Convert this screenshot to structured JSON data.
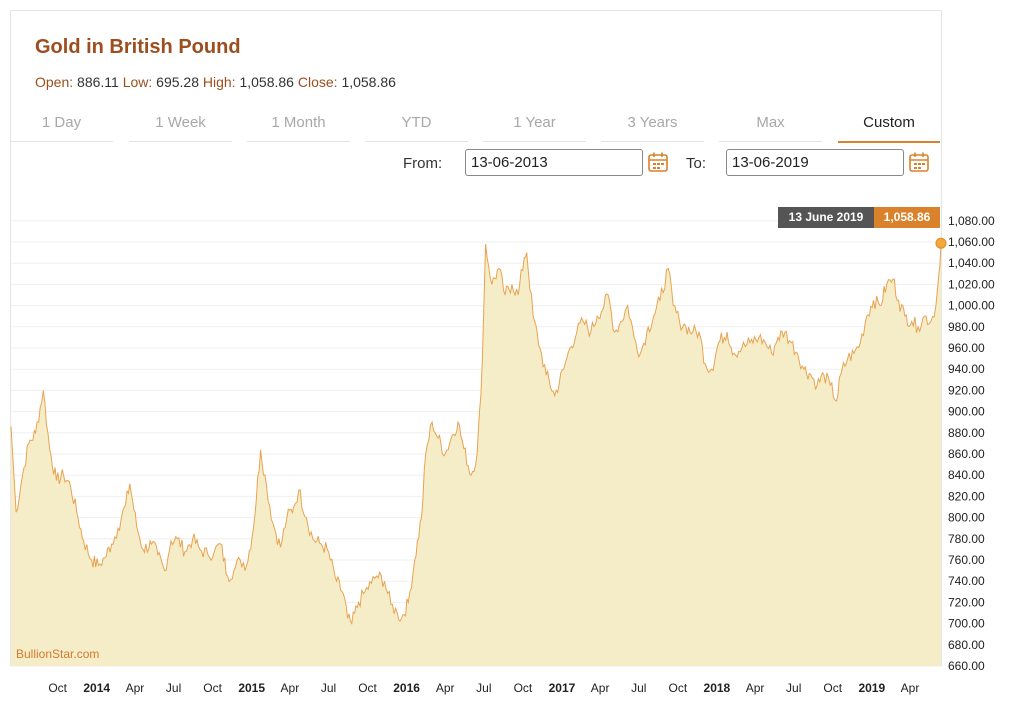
{
  "title": "Gold in British Pound",
  "ohlc": {
    "open_label": "Open:",
    "open": "886.11",
    "low_label": "Low:",
    "low": "695.28",
    "high_label": "High:",
    "high": "1,058.86",
    "close_label": "Close:",
    "close": "1,058.86"
  },
  "tabs": [
    "1 Day",
    "1 Week",
    "1 Month",
    "YTD",
    "1 Year",
    "3 Years",
    "Max",
    "Custom"
  ],
  "active_tab": "Custom",
  "range": {
    "from_label": "From:",
    "from_value": "13-06-2013",
    "to_label": "To:",
    "to_value": "13-06-2019"
  },
  "tooltip": {
    "date": "13 June 2019",
    "value": "1,058.86"
  },
  "brand": "BullionStar.com",
  "colors": {
    "accent": "#d9822b",
    "line": "#e8a351",
    "fill": "#f5edc8",
    "title": "#9c4f1e"
  },
  "chart_data": {
    "type": "area",
    "title": "Gold in British Pound",
    "ylim": [
      660,
      1090
    ],
    "y_ticks": [
      "1,080.00",
      "1,060.00",
      "1,040.00",
      "1,020.00",
      "1,000.00",
      "980.00",
      "960.00",
      "940.00",
      "920.00",
      "900.00",
      "880.00",
      "860.00",
      "840.00",
      "820.00",
      "800.00",
      "780.00",
      "760.00",
      "740.00",
      "720.00",
      "700.00",
      "680.00",
      "660.00"
    ],
    "x_range": [
      "2013-06-13",
      "2019-06-13"
    ],
    "x_ticks": [
      {
        "label": "Oct",
        "date": "2013-10-01",
        "bold": false
      },
      {
        "label": "2014",
        "date": "2014-01-01",
        "bold": true
      },
      {
        "label": "Apr",
        "date": "2014-04-01",
        "bold": false
      },
      {
        "label": "Jul",
        "date": "2014-07-01",
        "bold": false
      },
      {
        "label": "Oct",
        "date": "2014-10-01",
        "bold": false
      },
      {
        "label": "2015",
        "date": "2015-01-01",
        "bold": true
      },
      {
        "label": "Apr",
        "date": "2015-04-01",
        "bold": false
      },
      {
        "label": "Jul",
        "date": "2015-07-01",
        "bold": false
      },
      {
        "label": "Oct",
        "date": "2015-10-01",
        "bold": false
      },
      {
        "label": "2016",
        "date": "2016-01-01",
        "bold": true
      },
      {
        "label": "Apr",
        "date": "2016-04-01",
        "bold": false
      },
      {
        "label": "Jul",
        "date": "2016-07-01",
        "bold": false
      },
      {
        "label": "Oct",
        "date": "2016-10-01",
        "bold": false
      },
      {
        "label": "2017",
        "date": "2017-01-01",
        "bold": true
      },
      {
        "label": "Apr",
        "date": "2017-04-01",
        "bold": false
      },
      {
        "label": "Jul",
        "date": "2017-07-01",
        "bold": false
      },
      {
        "label": "Oct",
        "date": "2017-10-01",
        "bold": false
      },
      {
        "label": "2018",
        "date": "2018-01-01",
        "bold": true
      },
      {
        "label": "Apr",
        "date": "2018-04-01",
        "bold": false
      },
      {
        "label": "Jul",
        "date": "2018-07-01",
        "bold": false
      },
      {
        "label": "Oct",
        "date": "2018-10-01",
        "bold": false
      },
      {
        "label": "2019",
        "date": "2019-01-01",
        "bold": true
      },
      {
        "label": "Apr",
        "date": "2019-04-01",
        "bold": false
      }
    ],
    "series": [
      {
        "points": [
          [
            "2013-06-13",
            886
          ],
          [
            "2013-06-25",
            805
          ],
          [
            "2013-07-10",
            840
          ],
          [
            "2013-07-25",
            870
          ],
          [
            "2013-08-10",
            880
          ],
          [
            "2013-08-28",
            920
          ],
          [
            "2013-09-12",
            865
          ],
          [
            "2013-09-28",
            835
          ],
          [
            "2013-10-15",
            840
          ],
          [
            "2013-10-31",
            830
          ],
          [
            "2013-11-15",
            805
          ],
          [
            "2013-12-01",
            778
          ],
          [
            "2013-12-20",
            760
          ],
          [
            "2014-01-05",
            755
          ],
          [
            "2014-01-20",
            762
          ],
          [
            "2014-02-05",
            775
          ],
          [
            "2014-02-20",
            790
          ],
          [
            "2014-03-10",
            812
          ],
          [
            "2014-03-20",
            832
          ],
          [
            "2014-04-05",
            792
          ],
          [
            "2014-04-20",
            770
          ],
          [
            "2014-05-10",
            775
          ],
          [
            "2014-05-25",
            765
          ],
          [
            "2014-06-10",
            750
          ],
          [
            "2014-06-25",
            778
          ],
          [
            "2014-07-10",
            780
          ],
          [
            "2014-07-28",
            768
          ],
          [
            "2014-08-15",
            780
          ],
          [
            "2014-09-01",
            770
          ],
          [
            "2014-09-20",
            765
          ],
          [
            "2014-10-05",
            768
          ],
          [
            "2014-10-20",
            775
          ],
          [
            "2014-11-05",
            745
          ],
          [
            "2014-11-20",
            750
          ],
          [
            "2014-12-05",
            760
          ],
          [
            "2014-12-20",
            755
          ],
          [
            "2015-01-05",
            790
          ],
          [
            "2015-01-22",
            864
          ],
          [
            "2015-02-05",
            830
          ],
          [
            "2015-02-20",
            795
          ],
          [
            "2015-03-10",
            772
          ],
          [
            "2015-03-25",
            800
          ],
          [
            "2015-04-10",
            810
          ],
          [
            "2015-04-22",
            826
          ],
          [
            "2015-05-10",
            800
          ],
          [
            "2015-05-25",
            780
          ],
          [
            "2015-06-10",
            776
          ],
          [
            "2015-06-28",
            770
          ],
          [
            "2015-07-20",
            740
          ],
          [
            "2015-08-05",
            728
          ],
          [
            "2015-08-15",
            705
          ],
          [
            "2015-08-25",
            700
          ],
          [
            "2015-09-10",
            720
          ],
          [
            "2015-09-25",
            730
          ],
          [
            "2015-10-10",
            738
          ],
          [
            "2015-10-22",
            745
          ],
          [
            "2015-11-10",
            740
          ],
          [
            "2015-11-25",
            718
          ],
          [
            "2015-12-10",
            710
          ],
          [
            "2015-12-20",
            705
          ],
          [
            "2016-01-05",
            720
          ],
          [
            "2016-01-20",
            760
          ],
          [
            "2016-02-05",
            800
          ],
          [
            "2016-02-15",
            860
          ],
          [
            "2016-03-01",
            890
          ],
          [
            "2016-03-15",
            875
          ],
          [
            "2016-04-01",
            860
          ],
          [
            "2016-04-15",
            875
          ],
          [
            "2016-05-01",
            890
          ],
          [
            "2016-05-15",
            865
          ],
          [
            "2016-06-01",
            840
          ],
          [
            "2016-06-15",
            860
          ],
          [
            "2016-06-24",
            915
          ],
          [
            "2016-07-01",
            1000
          ],
          [
            "2016-07-05",
            1058
          ],
          [
            "2016-07-20",
            1020
          ],
          [
            "2016-08-05",
            1035
          ],
          [
            "2016-08-20",
            1010
          ],
          [
            "2016-09-05",
            1020
          ],
          [
            "2016-09-20",
            1010
          ],
          [
            "2016-10-04",
            1045
          ],
          [
            "2016-10-10",
            1050
          ],
          [
            "2016-10-25",
            990
          ],
          [
            "2016-11-10",
            960
          ],
          [
            "2016-11-25",
            935
          ],
          [
            "2016-12-15",
            915
          ],
          [
            "2017-01-05",
            940
          ],
          [
            "2017-01-20",
            960
          ],
          [
            "2017-02-05",
            975
          ],
          [
            "2017-02-20",
            985
          ],
          [
            "2017-03-10",
            975
          ],
          [
            "2017-03-25",
            990
          ],
          [
            "2017-04-10",
            1000
          ],
          [
            "2017-04-20",
            1010
          ],
          [
            "2017-05-05",
            975
          ],
          [
            "2017-05-20",
            985
          ],
          [
            "2017-06-05",
            1000
          ],
          [
            "2017-06-20",
            970
          ],
          [
            "2017-07-05",
            955
          ],
          [
            "2017-07-20",
            975
          ],
          [
            "2017-08-05",
            990
          ],
          [
            "2017-08-20",
            1005
          ],
          [
            "2017-09-08",
            1035
          ],
          [
            "2017-09-20",
            1000
          ],
          [
            "2017-10-05",
            985
          ],
          [
            "2017-10-20",
            980
          ],
          [
            "2017-11-05",
            975
          ],
          [
            "2017-11-20",
            975
          ],
          [
            "2017-12-05",
            945
          ],
          [
            "2017-12-20",
            940
          ],
          [
            "2018-01-05",
            965
          ],
          [
            "2018-01-25",
            975
          ],
          [
            "2018-02-10",
            955
          ],
          [
            "2018-03-01",
            960
          ],
          [
            "2018-03-20",
            965
          ],
          [
            "2018-04-10",
            970
          ],
          [
            "2018-04-25",
            965
          ],
          [
            "2018-05-10",
            955
          ],
          [
            "2018-05-25",
            970
          ],
          [
            "2018-06-10",
            975
          ],
          [
            "2018-06-25",
            965
          ],
          [
            "2018-07-10",
            955
          ],
          [
            "2018-07-25",
            940
          ],
          [
            "2018-08-10",
            935
          ],
          [
            "2018-08-25",
            925
          ],
          [
            "2018-09-10",
            935
          ],
          [
            "2018-09-25",
            925
          ],
          [
            "2018-10-10",
            910
          ],
          [
            "2018-10-20",
            935
          ],
          [
            "2018-11-05",
            950
          ],
          [
            "2018-11-20",
            955
          ],
          [
            "2018-12-05",
            965
          ],
          [
            "2018-12-20",
            990
          ],
          [
            "2019-01-05",
            1005
          ],
          [
            "2019-01-20",
            1000
          ],
          [
            "2019-02-05",
            1020
          ],
          [
            "2019-02-20",
            1025
          ],
          [
            "2019-03-05",
            1005
          ],
          [
            "2019-03-20",
            990
          ],
          [
            "2019-04-05",
            985
          ],
          [
            "2019-04-20",
            980
          ],
          [
            "2019-05-05",
            990
          ],
          [
            "2019-05-20",
            985
          ],
          [
            "2019-06-01",
            1000
          ],
          [
            "2019-06-08",
            1030
          ],
          [
            "2019-06-13",
            1058.86
          ]
        ]
      }
    ]
  }
}
